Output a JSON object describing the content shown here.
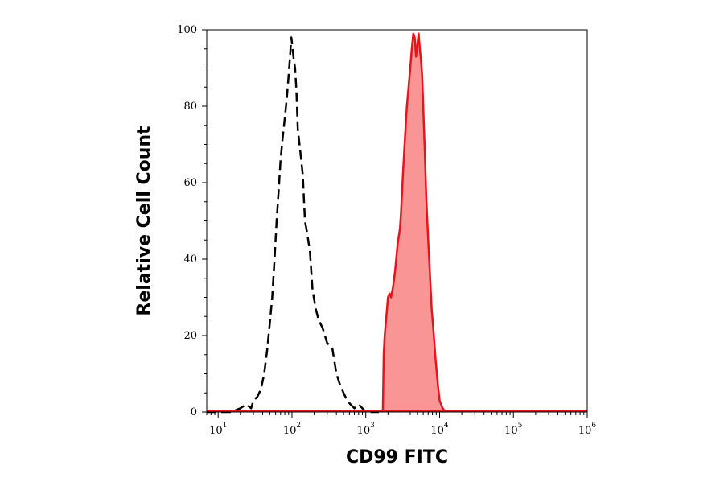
{
  "chart_data": {
    "type": "area",
    "title": "",
    "xlabel": "CD99 FITC",
    "ylabel": "Relative Cell Count",
    "x_scale": "log",
    "xlim": [
      7,
      1000000
    ],
    "ylim": [
      0,
      100
    ],
    "y_ticks": [
      0,
      20,
      40,
      60,
      80,
      100
    ],
    "x_ticks": [
      {
        "value": 10,
        "base": "10",
        "exp": "1"
      },
      {
        "value": 100,
        "base": "10",
        "exp": "2"
      },
      {
        "value": 1000,
        "base": "10",
        "exp": "3"
      },
      {
        "value": 10000,
        "base": "10",
        "exp": "4"
      },
      {
        "value": 100000,
        "base": "10",
        "exp": "5"
      },
      {
        "value": 1000000,
        "base": "10",
        "exp": "6"
      }
    ],
    "grid": false,
    "legend": "none",
    "series": [
      {
        "style": "dashed-outline",
        "color": "#000000",
        "points": [
          [
            7,
            0
          ],
          [
            15,
            0
          ],
          [
            20,
            1
          ],
          [
            24,
            2
          ],
          [
            28,
            1
          ],
          [
            30,
            3
          ],
          [
            34,
            4
          ],
          [
            38,
            6
          ],
          [
            42,
            10
          ],
          [
            46,
            16
          ],
          [
            50,
            23
          ],
          [
            54,
            30
          ],
          [
            58,
            40
          ],
          [
            62,
            50
          ],
          [
            66,
            58
          ],
          [
            70,
            66
          ],
          [
            75,
            72
          ],
          [
            80,
            77
          ],
          [
            85,
            82
          ],
          [
            90,
            88
          ],
          [
            94,
            93
          ],
          [
            98,
            98
          ],
          [
            102,
            95
          ],
          [
            106,
            92
          ],
          [
            110,
            90
          ],
          [
            115,
            84
          ],
          [
            120,
            74
          ],
          [
            130,
            68
          ],
          [
            140,
            62
          ],
          [
            150,
            50
          ],
          [
            160,
            47
          ],
          [
            175,
            42
          ],
          [
            190,
            32
          ],
          [
            210,
            27
          ],
          [
            230,
            24
          ],
          [
            260,
            22
          ],
          [
            300,
            18
          ],
          [
            350,
            17
          ],
          [
            400,
            10
          ],
          [
            450,
            7
          ],
          [
            500,
            5
          ],
          [
            560,
            3
          ],
          [
            620,
            2
          ],
          [
            700,
            1
          ],
          [
            800,
            2
          ],
          [
            900,
            1
          ],
          [
            1000,
            0
          ],
          [
            1500,
            0
          ]
        ]
      },
      {
        "style": "filled",
        "color": "#e8131b",
        "fill": "#f99595",
        "points": [
          [
            1700,
            0
          ],
          [
            1750,
            15
          ],
          [
            1800,
            20
          ],
          [
            1900,
            25
          ],
          [
            2000,
            30
          ],
          [
            2100,
            31
          ],
          [
            2200,
            30
          ],
          [
            2350,
            33
          ],
          [
            2500,
            37
          ],
          [
            2700,
            44
          ],
          [
            2900,
            48
          ],
          [
            3000,
            52
          ],
          [
            3200,
            63
          ],
          [
            3400,
            72
          ],
          [
            3600,
            80
          ],
          [
            3800,
            85
          ],
          [
            4000,
            90
          ],
          [
            4200,
            95
          ],
          [
            4400,
            99
          ],
          [
            4600,
            98
          ],
          [
            4800,
            93
          ],
          [
            5000,
            96
          ],
          [
            5200,
            99
          ],
          [
            5400,
            95
          ],
          [
            5600,
            92
          ],
          [
            5800,
            88
          ],
          [
            6000,
            80
          ],
          [
            6300,
            68
          ],
          [
            6600,
            56
          ],
          [
            7000,
            45
          ],
          [
            7400,
            36
          ],
          [
            7800,
            27
          ],
          [
            8200,
            22
          ],
          [
            8800,
            14
          ],
          [
            9500,
            7
          ],
          [
            10000,
            3
          ],
          [
            11000,
            1
          ],
          [
            12000,
            0
          ]
        ]
      }
    ]
  }
}
